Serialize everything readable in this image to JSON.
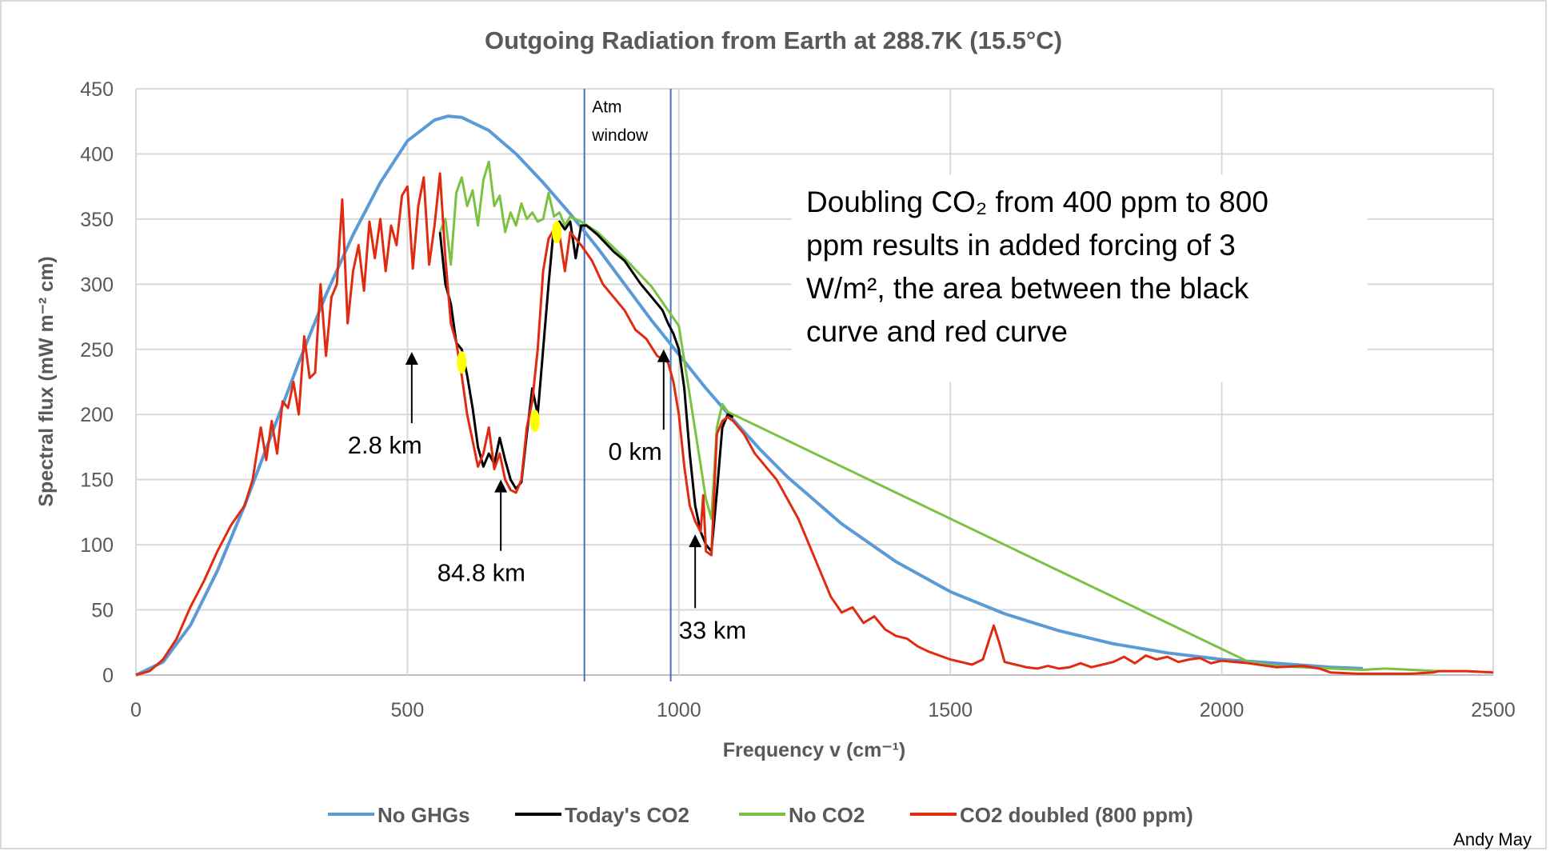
{
  "chart_data": {
    "type": "line",
    "title": "Outgoing Radiation from Earth at 288.7K (15.5°C)",
    "xlabel": "Frequency v (cm⁻¹)",
    "ylabel": "Spectral flux (mW m⁻² cm)",
    "xlim": [
      0,
      2500
    ],
    "ylim": [
      0,
      450
    ],
    "xticks": [
      0,
      500,
      1000,
      1500,
      2000,
      2500
    ],
    "yticks": [
      0,
      50,
      100,
      150,
      200,
      250,
      300,
      350,
      400,
      450
    ],
    "grid": true,
    "legend_position": "bottom",
    "series": [
      {
        "name": "No GHGs",
        "color": "#5b9bd5",
        "x": [
          0,
          50,
          100,
          150,
          200,
          250,
          300,
          350,
          400,
          450,
          500,
          550,
          575,
          600,
          650,
          700,
          750,
          800,
          850,
          900,
          950,
          1000,
          1050,
          1100,
          1150,
          1200,
          1300,
          1400,
          1500,
          1600,
          1700,
          1800,
          1900,
          2000,
          2100,
          2200,
          2260
        ],
        "y": [
          0,
          10,
          38,
          80,
          130,
          185,
          240,
          292,
          338,
          378,
          410,
          426,
          429,
          428,
          418,
          400,
          378,
          354,
          328,
          300,
          272,
          246,
          220,
          196,
          173,
          152,
          116,
          87,
          64,
          47,
          34,
          24,
          17,
          12,
          9,
          6,
          5
        ]
      },
      {
        "name": "Today's CO2",
        "color": "#000000",
        "x": [
          560,
          570,
          580,
          590,
          600,
          610,
          620,
          630,
          640,
          650,
          660,
          670,
          680,
          690,
          700,
          710,
          720,
          730,
          740,
          750,
          760,
          770,
          780,
          790,
          800,
          810,
          820,
          830,
          850,
          880,
          900,
          930,
          950,
          970,
          980,
          990,
          1000,
          1010,
          1020,
          1030,
          1040,
          1050,
          1060,
          1070,
          1080,
          1090,
          1100
        ],
        "y": [
          340,
          300,
          285,
          255,
          250,
          230,
          205,
          175,
          160,
          170,
          162,
          182,
          165,
          150,
          143,
          148,
          185,
          220,
          200,
          250,
          300,
          345,
          348,
          342,
          348,
          320,
          345,
          345,
          338,
          325,
          318,
          300,
          290,
          280,
          270,
          262,
          250,
          220,
          170,
          130,
          110,
          100,
          95,
          140,
          190,
          200,
          198
        ]
      },
      {
        "name": "No CO2",
        "color": "#7cc242",
        "x": [
          560,
          570,
          580,
          590,
          600,
          610,
          620,
          630,
          640,
          650,
          660,
          670,
          680,
          690,
          700,
          710,
          720,
          730,
          740,
          750,
          760,
          770,
          780,
          790,
          800,
          820,
          850,
          900,
          950,
          1000,
          1050,
          1060,
          1070,
          1080,
          1090,
          1100,
          2050,
          2100,
          2200,
          2260,
          2300,
          2400
        ],
        "y": [
          340,
          350,
          315,
          370,
          382,
          360,
          372,
          345,
          380,
          394,
          360,
          368,
          340,
          355,
          345,
          362,
          350,
          355,
          348,
          350,
          370,
          352,
          355,
          345,
          352,
          348,
          340,
          320,
          298,
          268,
          135,
          120,
          190,
          208,
          202,
          200,
          10,
          7,
          5,
          4,
          5,
          3
        ]
      },
      {
        "name": "CO2 doubled (800 ppm)",
        "color": "#e02b10",
        "x": [
          0,
          25,
          50,
          75,
          100,
          125,
          150,
          175,
          200,
          215,
          230,
          240,
          250,
          260,
          270,
          280,
          290,
          300,
          310,
          320,
          330,
          340,
          350,
          360,
          370,
          380,
          390,
          400,
          410,
          420,
          430,
          440,
          450,
          460,
          470,
          480,
          490,
          500,
          510,
          520,
          530,
          540,
          550,
          560,
          570,
          580,
          590,
          600,
          610,
          620,
          630,
          640,
          650,
          660,
          670,
          680,
          690,
          700,
          710,
          720,
          730,
          740,
          750,
          760,
          770,
          780,
          790,
          800,
          820,
          840,
          860,
          880,
          900,
          920,
          940,
          960,
          980,
          990,
          1000,
          1010,
          1020,
          1030,
          1040,
          1045,
          1050,
          1060,
          1070,
          1080,
          1090,
          1100,
          1120,
          1140,
          1160,
          1180,
          1200,
          1220,
          1240,
          1260,
          1280,
          1300,
          1320,
          1340,
          1360,
          1380,
          1400,
          1420,
          1440,
          1460,
          1480,
          1500,
          1520,
          1540,
          1560,
          1580,
          1590,
          1600,
          1620,
          1640,
          1660,
          1680,
          1700,
          1720,
          1740,
          1760,
          1780,
          1800,
          1820,
          1840,
          1860,
          1880,
          1900,
          1920,
          1940,
          1960,
          1980,
          2000,
          2050,
          2100,
          2150,
          2180,
          2200,
          2250,
          2300,
          2350,
          2390,
          2400,
          2450,
          2500
        ],
        "y": [
          0,
          3,
          12,
          28,
          52,
          72,
          95,
          115,
          130,
          150,
          190,
          165,
          195,
          170,
          210,
          205,
          225,
          200,
          260,
          228,
          232,
          300,
          245,
          290,
          300,
          365,
          270,
          310,
          330,
          295,
          348,
          320,
          350,
          310,
          345,
          330,
          368,
          375,
          312,
          360,
          382,
          315,
          345,
          385,
          320,
          270,
          255,
          230,
          200,
          180,
          160,
          170,
          190,
          158,
          170,
          150,
          142,
          140,
          150,
          190,
          210,
          250,
          310,
          335,
          342,
          338,
          310,
          340,
          330,
          318,
          300,
          290,
          280,
          265,
          258,
          245,
          240,
          225,
          200,
          160,
          130,
          118,
          110,
          138,
          95,
          92,
          185,
          195,
          198,
          195,
          185,
          170,
          160,
          150,
          135,
          120,
          100,
          80,
          60,
          48,
          52,
          40,
          45,
          35,
          30,
          28,
          22,
          18,
          15,
          12,
          10,
          8,
          12,
          38,
          25,
          10,
          8,
          6,
          5,
          7,
          5,
          6,
          9,
          6,
          8,
          10,
          14,
          9,
          15,
          12,
          14,
          10,
          12,
          13,
          9,
          11,
          9,
          6,
          7,
          5,
          2,
          1,
          1,
          1,
          2,
          3,
          3,
          2
        ]
      }
    ],
    "vertical_lines": [
      {
        "x": 826,
        "color": "#4472c4"
      },
      {
        "x": 985,
        "color": "#4472c4"
      }
    ],
    "highlights": [
      {
        "x": 600,
        "y": 240,
        "color": "#ffff00"
      },
      {
        "x": 735,
        "y": 195,
        "color": "#ffff00"
      },
      {
        "x": 775,
        "y": 340,
        "color": "#ffff00"
      }
    ],
    "annotations": [
      {
        "text": "Atm",
        "x": 840,
        "y": 432,
        "size": "small"
      },
      {
        "text": "window",
        "x": 840,
        "y": 410,
        "size": "small"
      },
      {
        "text": "2.8 km",
        "x": 390,
        "y": 170,
        "arrow_from": [
          508,
          238
        ],
        "arrow_to": [
          508,
          248
        ]
      },
      {
        "text": "84.8 km",
        "x": 555,
        "y": 72,
        "arrow_from": [
          672,
          140
        ],
        "arrow_to": [
          672,
          150
        ]
      },
      {
        "text": "0 km",
        "x": 870,
        "y": 165,
        "arrow_from": [
          972,
          240
        ],
        "arrow_to": [
          972,
          250
        ]
      },
      {
        "text": "33 km",
        "x": 1000,
        "y": 28,
        "arrow_from": [
          1030,
          98
        ],
        "arrow_to": [
          1030,
          108
        ]
      }
    ],
    "note_lines": [
      "Doubling CO₂ from 400 ppm to 800",
      "ppm results in added forcing of  3",
      "W/m², the area between the black",
      "curve and red curve"
    ],
    "credit": "Andy May"
  }
}
